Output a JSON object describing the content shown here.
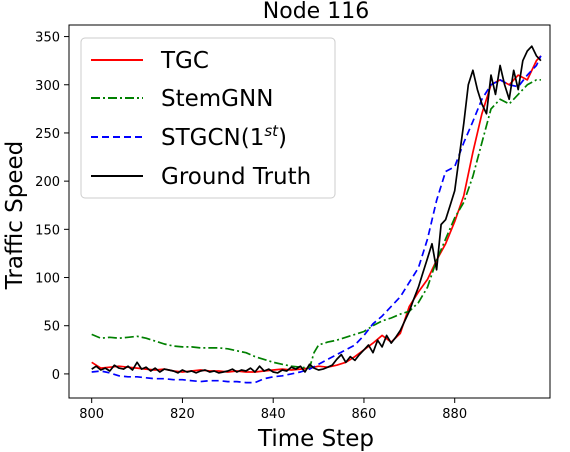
{
  "chart_data": {
    "type": "line",
    "title": "Node 116",
    "xlabel": "Time Step",
    "ylabel": "Traffic Speed",
    "xlim": [
      795,
      901
    ],
    "ylim": [
      -25,
      362
    ],
    "xticks": [
      800,
      820,
      840,
      860,
      880
    ],
    "yticks": [
      0,
      50,
      100,
      150,
      200,
      250,
      300,
      350
    ],
    "grid": false,
    "legend": "top-left",
    "series": [
      {
        "name": "TGC",
        "color": "#ff0000",
        "style": "solid",
        "x": [
          800,
          802,
          804,
          806,
          808,
          810,
          812,
          814,
          816,
          818,
          820,
          822,
          824,
          826,
          828,
          830,
          832,
          834,
          836,
          838,
          840,
          842,
          844,
          846,
          848,
          850,
          852,
          854,
          856,
          858,
          860,
          862,
          864,
          866,
          868,
          870,
          872,
          874,
          876,
          878,
          880,
          882,
          884,
          886,
          888,
          890,
          892,
          894,
          896,
          898,
          899
        ],
        "y": [
          12,
          6,
          7,
          8,
          7,
          6,
          5,
          4,
          5,
          3,
          2,
          3,
          4,
          3,
          3,
          2,
          3,
          2,
          2,
          3,
          4,
          5,
          4,
          5,
          6,
          8,
          7,
          9,
          12,
          18,
          25,
          32,
          40,
          33,
          42,
          70,
          85,
          98,
          118,
          135,
          158,
          185,
          230,
          270,
          300,
          305,
          300,
          310,
          305,
          325,
          330
        ]
      },
      {
        "name": "StemGNN",
        "color": "#008000",
        "style": "dashdot",
        "x": [
          800,
          802,
          804,
          806,
          808,
          810,
          812,
          814,
          816,
          818,
          820,
          822,
          824,
          826,
          828,
          830,
          832,
          834,
          836,
          838,
          840,
          842,
          844,
          846,
          848,
          849,
          850,
          852,
          854,
          856,
          858,
          860,
          862,
          864,
          866,
          868,
          870,
          872,
          874,
          876,
          878,
          880,
          882,
          884,
          886,
          888,
          890,
          892,
          894,
          896,
          898,
          899
        ],
        "y": [
          41,
          37,
          38,
          37,
          38,
          39,
          37,
          34,
          31,
          29,
          28,
          28,
          27,
          27,
          27,
          26,
          24,
          22,
          18,
          15,
          12,
          10,
          8,
          7,
          6,
          22,
          30,
          33,
          35,
          38,
          41,
          44,
          50,
          55,
          58,
          62,
          65,
          74,
          90,
          118,
          140,
          162,
          178,
          205,
          240,
          275,
          285,
          280,
          290,
          300,
          305,
          305
        ]
      },
      {
        "name": "STGCN(1st)",
        "color": "#0000ff",
        "style": "dashed",
        "x": [
          800,
          802,
          804,
          806,
          808,
          810,
          812,
          814,
          816,
          818,
          820,
          822,
          824,
          826,
          828,
          830,
          832,
          834,
          836,
          838,
          840,
          842,
          844,
          846,
          848,
          850,
          852,
          854,
          856,
          858,
          860,
          862,
          864,
          866,
          868,
          870,
          872,
          874,
          876,
          878,
          880,
          882,
          884,
          886,
          888,
          890,
          892,
          894,
          896,
          898,
          899
        ],
        "y": [
          2,
          3,
          1,
          -2,
          -3,
          -3,
          -4,
          -5,
          -5,
          -6,
          -6,
          -7,
          -8,
          -7,
          -7,
          -8,
          -8,
          -9,
          -9,
          -5,
          -3,
          -2,
          0,
          2,
          5,
          10,
          15,
          20,
          25,
          30,
          40,
          52,
          60,
          70,
          80,
          95,
          110,
          140,
          180,
          210,
          215,
          240,
          262,
          285,
          300,
          305,
          300,
          298,
          310,
          320,
          330
        ]
      },
      {
        "name": "Ground Truth",
        "color": "#000000",
        "style": "solid",
        "x": [
          800,
          801,
          802,
          803,
          804,
          805,
          806,
          807,
          808,
          809,
          810,
          811,
          812,
          813,
          814,
          815,
          816,
          817,
          818,
          819,
          820,
          821,
          822,
          823,
          824,
          825,
          826,
          827,
          828,
          829,
          830,
          831,
          832,
          833,
          834,
          835,
          836,
          837,
          838,
          839,
          840,
          841,
          842,
          843,
          844,
          845,
          846,
          847,
          848,
          849,
          850,
          851,
          852,
          853,
          854,
          855,
          856,
          857,
          858,
          859,
          860,
          861,
          862,
          863,
          864,
          865,
          866,
          867,
          868,
          869,
          870,
          871,
          872,
          873,
          874,
          875,
          876,
          877,
          878,
          879,
          880,
          881,
          882,
          883,
          884,
          885,
          886,
          887,
          888,
          889,
          890,
          891,
          892,
          893,
          894,
          895,
          896,
          897,
          898,
          899
        ],
        "y": [
          5,
          8,
          4,
          6,
          3,
          9,
          6,
          5,
          8,
          4,
          12,
          5,
          7,
          3,
          6,
          2,
          5,
          4,
          3,
          1,
          4,
          2,
          3,
          1,
          3,
          4,
          2,
          3,
          1,
          2,
          3,
          5,
          2,
          4,
          3,
          6,
          2,
          8,
          3,
          5,
          2,
          1,
          4,
          3,
          7,
          5,
          8,
          2,
          10,
          6,
          4,
          5,
          7,
          9,
          15,
          20,
          12,
          18,
          14,
          20,
          25,
          30,
          22,
          35,
          28,
          40,
          32,
          38,
          45,
          55,
          65,
          78,
          90,
          105,
          120,
          135,
          108,
          155,
          160,
          175,
          190,
          225,
          260,
          300,
          315,
          295,
          280,
          270,
          310,
          290,
          320,
          300,
          285,
          315,
          295,
          325,
          335,
          340,
          330,
          325
        ]
      }
    ]
  }
}
